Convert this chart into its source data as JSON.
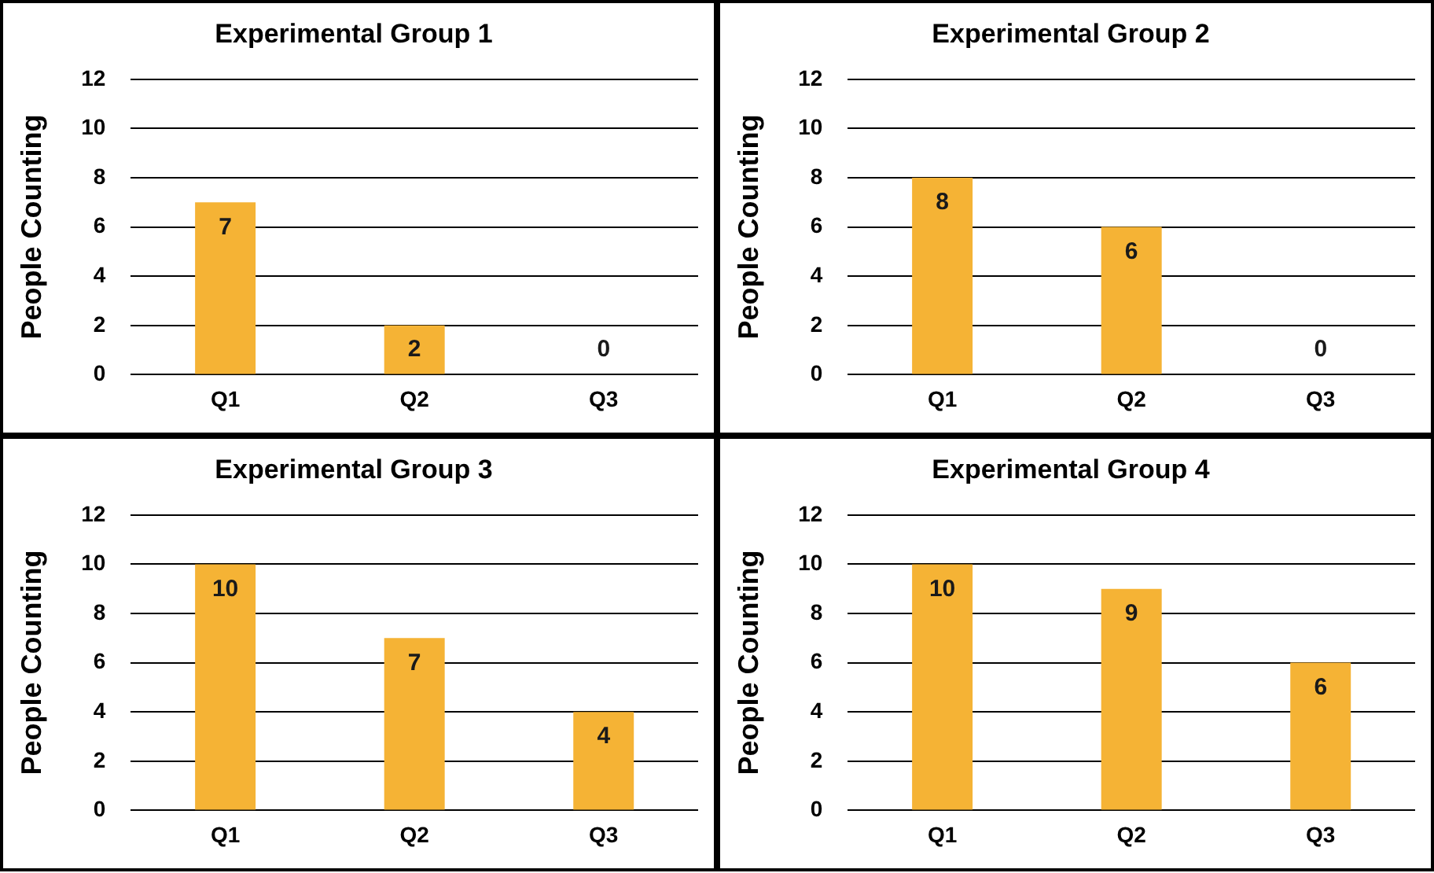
{
  "chart_data": [
    {
      "type": "bar",
      "title": "Experimental Group 1",
      "ylabel": "People Counting",
      "categories": [
        "Q1",
        "Q2",
        "Q3"
      ],
      "values": [
        7,
        2,
        0
      ],
      "color": "#f5b335",
      "ylim": [
        0,
        12
      ],
      "yticks": [
        0,
        2,
        4,
        6,
        8,
        10,
        12
      ],
      "grid": "y",
      "data_labels": true,
      "legend": false
    },
    {
      "type": "bar",
      "title": "Experimental Group 2",
      "ylabel": "People Counting",
      "categories": [
        "Q1",
        "Q2",
        "Q3"
      ],
      "values": [
        8,
        6,
        0
      ],
      "color": "#f5b335",
      "ylim": [
        0,
        12
      ],
      "yticks": [
        0,
        2,
        4,
        6,
        8,
        10,
        12
      ],
      "grid": "y",
      "data_labels": true,
      "legend": false
    },
    {
      "type": "bar",
      "title": "Experimental Group 3",
      "ylabel": "People Counting",
      "categories": [
        "Q1",
        "Q2",
        "Q3"
      ],
      "values": [
        10,
        7,
        4
      ],
      "color": "#f5b335",
      "ylim": [
        0,
        12
      ],
      "yticks": [
        0,
        2,
        4,
        6,
        8,
        10,
        12
      ],
      "grid": "y",
      "data_labels": true,
      "legend": false
    },
    {
      "type": "bar",
      "title": "Experimental Group 4",
      "ylabel": "People Counting",
      "categories": [
        "Q1",
        "Q2",
        "Q3"
      ],
      "values": [
        10,
        9,
        6
      ],
      "color": "#f5b335",
      "ylim": [
        0,
        12
      ],
      "yticks": [
        0,
        2,
        4,
        6,
        8,
        10,
        12
      ],
      "grid": "y",
      "data_labels": true,
      "legend": false
    }
  ]
}
